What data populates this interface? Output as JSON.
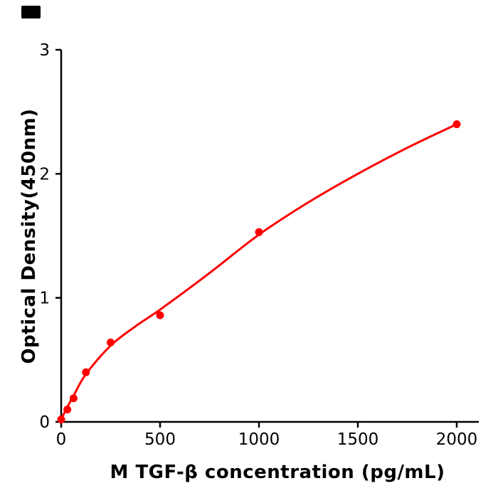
{
  "figure": {
    "background_color": "#ffffff",
    "axis_color": "#000000",
    "corner_mark_color": "#000000"
  },
  "chart_data": {
    "type": "scatter",
    "title": "",
    "xlabel": "M  TGF-β concentration (pg/mL)",
    "ylabel": "Optical Density(450nm)",
    "xlim": [
      0,
      2110
    ],
    "ylim": [
      0,
      3
    ],
    "grid": false,
    "legend": "none",
    "x_ticks": [
      0,
      500,
      1000,
      1500,
      2000
    ],
    "x_tick_labels": [
      "0",
      "500",
      "1000",
      "1500",
      "2000"
    ],
    "y_ticks": [
      0,
      1,
      2,
      3
    ],
    "y_tick_labels": [
      "0",
      "1",
      "2",
      "3"
    ],
    "series": [
      {
        "name": "standard-curve-points",
        "marker_color": "#ff0000",
        "points": [
          {
            "x": 0,
            "y": 0.02
          },
          {
            "x": 31.25,
            "y": 0.1
          },
          {
            "x": 62.5,
            "y": 0.19
          },
          {
            "x": 125,
            "y": 0.4
          },
          {
            "x": 250,
            "y": 0.64
          },
          {
            "x": 500,
            "y": 0.86
          },
          {
            "x": 1000,
            "y": 1.53
          },
          {
            "x": 2000,
            "y": 2.4
          }
        ]
      }
    ],
    "trend_line": {
      "color": "#ff0000",
      "width": 3,
      "points": [
        {
          "x": 0,
          "y": 0.02
        },
        {
          "x": 31.25,
          "y": 0.12
        },
        {
          "x": 62.5,
          "y": 0.21
        },
        {
          "x": 125,
          "y": 0.385
        },
        {
          "x": 250,
          "y": 0.615
        },
        {
          "x": 375,
          "y": 0.77
        },
        {
          "x": 500,
          "y": 0.905
        },
        {
          "x": 750,
          "y": 1.2
        },
        {
          "x": 1000,
          "y": 1.51
        },
        {
          "x": 1250,
          "y": 1.77
        },
        {
          "x": 1500,
          "y": 2.0
        },
        {
          "x": 1750,
          "y": 2.21
        },
        {
          "x": 2000,
          "y": 2.4
        }
      ]
    }
  }
}
